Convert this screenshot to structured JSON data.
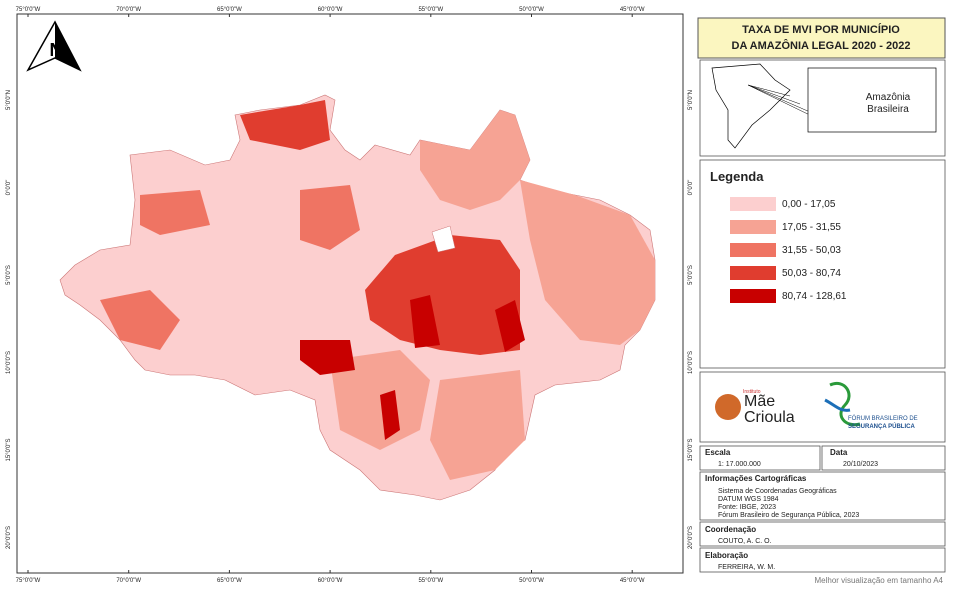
{
  "map": {
    "longitude_labels": [
      "75°0'0\"W",
      "70°0'0\"W",
      "65°0'0\"W",
      "60°0'0\"W",
      "55°0'0\"W",
      "50°0'0\"W",
      "45°0'0\"W"
    ],
    "latitude_labels": [
      "5°0'0\"N",
      "0°0'0\"",
      "5°0'0\"S",
      "10°0'0\"S",
      "15°0'0\"S",
      "20°0'0\"S"
    ],
    "north_arrow": "N"
  },
  "title": [
    "TAXA DE MVI POR MUNICÍPIO",
    "DA AMAZÔNIA LEGAL 2020 - 2022"
  ],
  "inset": {
    "label": [
      "Amazônia",
      "Brasileira"
    ]
  },
  "legend": {
    "title": "Legenda",
    "items": [
      {
        "label": "0,00 - 17,05",
        "color": "#fccfcf"
      },
      {
        "label": "17,05 - 31,55",
        "color": "#f6a394"
      },
      {
        "label": "31,55 - 50,03",
        "color": "#ef7463"
      },
      {
        "label": "50,03 - 80,74",
        "color": "#e03d2f"
      },
      {
        "label": "80,74 - 128,61",
        "color": "#c80000"
      }
    ]
  },
  "logos": {
    "instituto": [
      "Instituto",
      "Mãe",
      "Crioula"
    ],
    "forum": [
      "FÓRUM BRASILEIRO DE",
      "SEGURANÇA PÚBLICA"
    ]
  },
  "scale": {
    "label": "Escala",
    "value": "1: 17.000.000"
  },
  "date": {
    "label": "Data",
    "value": "20/10/2023"
  },
  "cartographic_info": {
    "label": "Informações Cartográficas",
    "lines": [
      "Sistema de Coordenadas Geográficas",
      "DATUM WGS 1984",
      "Fonte: IBGE, 2023",
      "Fórum Brasileiro de Segurança Pública, 2023"
    ]
  },
  "coordination": {
    "label": "Coordenação",
    "value": "COUTO, A. C. O."
  },
  "elaboration": {
    "label": "Elaboração",
    "value": "FERREIRA, W. M."
  },
  "footer": "Melhor visualização em tamanho A4"
}
